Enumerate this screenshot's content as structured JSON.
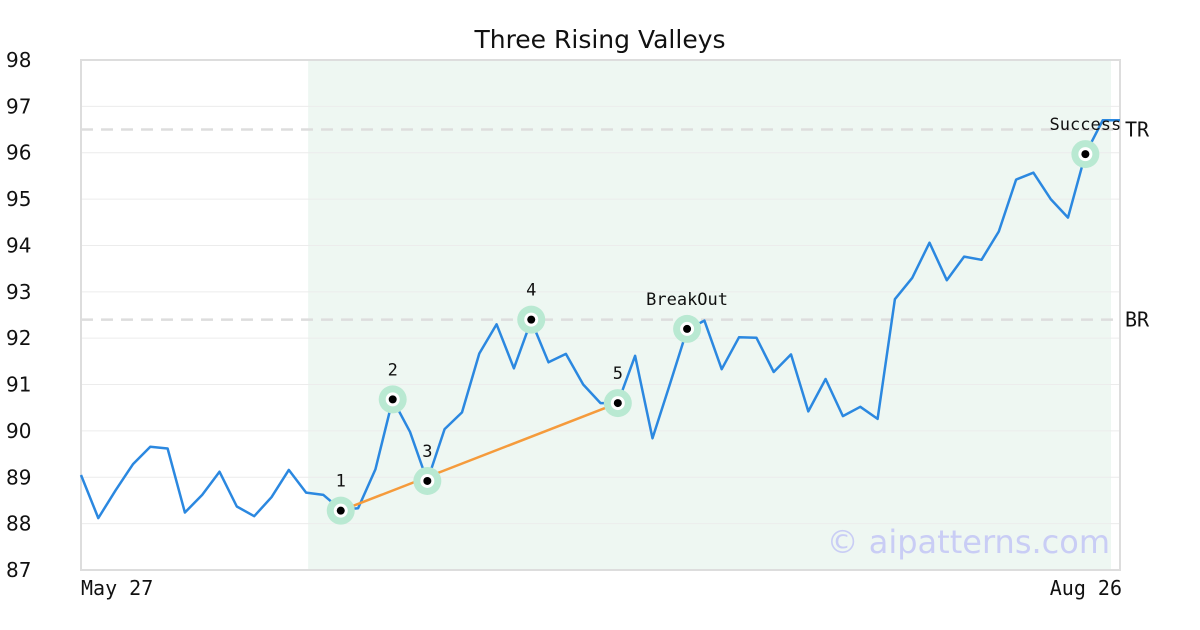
{
  "chart_data": {
    "type": "line",
    "title": "Three Rising Valleys",
    "xlabel": "",
    "ylabel": "",
    "ylim": [
      87,
      98
    ],
    "y_ticks": [
      "87",
      "88",
      "89",
      "90",
      "91",
      "92",
      "93",
      "94",
      "95",
      "96",
      "97",
      "98"
    ],
    "x_tick_labels": [
      {
        "index": 0,
        "label": "May 27"
      },
      {
        "index": 60,
        "label": "Aug 26"
      }
    ],
    "grid": "horizontal",
    "highlight_range": [
      13,
      60
    ],
    "series": [
      {
        "color": "#2b88e0",
        "values": [
          89.05,
          88.12,
          88.72,
          89.28,
          89.66,
          89.62,
          88.24,
          88.62,
          89.12,
          88.37,
          88.16,
          88.57,
          89.16,
          88.67,
          88.62,
          88.3,
          88.33,
          89.17,
          90.68,
          89.98,
          88.92,
          90.04,
          90.4,
          91.67,
          92.3,
          91.35,
          92.38,
          91.48,
          91.66,
          91.0,
          90.6,
          90.6,
          91.62,
          89.84,
          91.0,
          92.18,
          92.38,
          91.33,
          92.02,
          92.01,
          91.27,
          91.65,
          90.42,
          91.12,
          90.32,
          90.52,
          90.26,
          92.84,
          93.3,
          94.06,
          93.25,
          93.76,
          93.69,
          94.3,
          95.42,
          95.57,
          95.0,
          94.6,
          95.97,
          96.7,
          96.7
        ]
      }
    ],
    "pattern_line": {
      "color": "#f59b3c",
      "from_index": 15,
      "to_index": 31
    },
    "levels": [
      {
        "label": "TR",
        "value": 96.5
      },
      {
        "label": "BR",
        "value": 92.4
      }
    ],
    "annotations": [
      {
        "label": "1",
        "index": 15,
        "value": 88.28
      },
      {
        "label": "2",
        "index": 18,
        "value": 90.68
      },
      {
        "label": "3",
        "index": 20,
        "value": 88.92
      },
      {
        "label": "4",
        "index": 26,
        "value": 92.4
      },
      {
        "label": "5",
        "index": 31,
        "value": 90.6
      },
      {
        "label": "BreakOut",
        "index": 35,
        "value": 92.2
      },
      {
        "label": "Success",
        "index": 58,
        "value": 95.97
      }
    ],
    "colors": {
      "line": "#2b88e0",
      "highlight": "#eef7f2",
      "marker_halo": "#b9e9d2",
      "level_line": "#dddddd",
      "frame": "#dddddd"
    }
  },
  "watermark": "© aipatterns.com"
}
